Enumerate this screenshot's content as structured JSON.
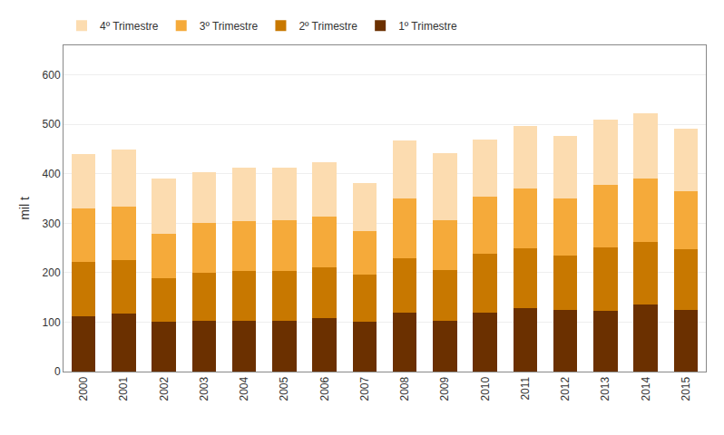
{
  "chart_data": {
    "type": "bar",
    "stacked": true,
    "ylabel": "mil t",
    "categories": [
      "2000",
      "2001",
      "2002",
      "2003",
      "2004",
      "2005",
      "2006",
      "2007",
      "2008",
      "2009",
      "2010",
      "2011",
      "2012",
      "2013",
      "2014",
      "2015"
    ],
    "series": [
      {
        "name": "1º Trimestre",
        "color": "#6B3000",
        "values": [
          112,
          118,
          100,
          102,
          103,
          103,
          108,
          100,
          120,
          103,
          120,
          128,
          125,
          123,
          135,
          125
        ]
      },
      {
        "name": "2º Trimestre",
        "color": "#C87800",
        "values": [
          110,
          107,
          88,
          98,
          100,
          100,
          103,
          97,
          110,
          103,
          118,
          122,
          110,
          128,
          128,
          122
        ]
      },
      {
        "name": "3º Trimestre",
        "color": "#F5AA3A",
        "values": [
          108,
          108,
          90,
          100,
          102,
          103,
          103,
          88,
          120,
          100,
          115,
          120,
          115,
          127,
          128,
          118
        ]
      },
      {
        "name": "4º Trimestre",
        "color": "#FCDCB0",
        "values": [
          110,
          117,
          112,
          103,
          108,
          107,
          110,
          97,
          117,
          135,
          117,
          127,
          127,
          132,
          132,
          127
        ]
      }
    ],
    "ylim": [
      0,
      660
    ],
    "yticks": [
      0,
      100,
      200,
      300,
      400,
      500,
      600
    ],
    "grid": true,
    "legend": "upper left"
  }
}
